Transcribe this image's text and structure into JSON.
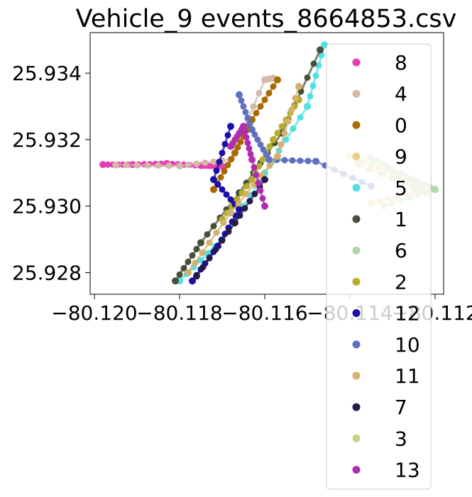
{
  "chart_data": {
    "type": "scatter",
    "title": "Vehicle_9 events_8664853.csv",
    "xlabel": "",
    "ylabel": "",
    "xlim": [
      -80.1201,
      -80.1118
    ],
    "ylim": [
      25.92735,
      25.93522
    ],
    "x_ticks": [
      -80.12,
      -80.118,
      -80.116,
      -80.114,
      -80.112
    ],
    "x_tick_labels": [
      "−80.120",
      "−80.118",
      "−80.116",
      "−80.114",
      "−80.112"
    ],
    "y_ticks": [
      25.928,
      25.93,
      25.932,
      25.934
    ],
    "y_tick_labels": [
      "25.928",
      "25.930",
      "25.932",
      "25.934"
    ],
    "grid": false,
    "legend_position": "right (overflowing axes)",
    "series": [
      {
        "name": "8",
        "color": "#e63fb0",
        "points": [
          [
            -80.1198,
            25.93125
          ],
          [
            -80.1191,
            25.93125
          ],
          [
            -80.1183,
            25.93128
          ],
          [
            -80.1175,
            25.93122
          ],
          [
            -80.117,
            25.9312
          ]
        ]
      },
      {
        "name": "4",
        "color": "#d4b8a8",
        "points": [
          [
            -80.1195,
            25.93124
          ],
          [
            -80.118,
            25.93121
          ],
          [
            -80.1168,
            25.9314
          ],
          [
            -80.116,
            25.9338
          ],
          [
            -80.1158,
            25.93385
          ]
        ]
      },
      {
        "name": "0",
        "color": "#a86a00",
        "points": [
          [
            -80.1157,
            25.9338
          ],
          [
            -80.1163,
            25.9326
          ],
          [
            -80.1167,
            25.9316
          ],
          [
            -80.1172,
            25.9305
          ]
        ]
      },
      {
        "name": "9",
        "color": "#e8d08a",
        "points": [
          [
            -80.114,
            25.9315
          ],
          [
            -80.113,
            25.931
          ],
          [
            -80.1123,
            25.9305
          ],
          [
            -80.1135,
            25.9301
          ]
        ]
      },
      {
        "name": "5",
        "color": "#4fe0e0",
        "points": [
          [
            -80.118,
            25.92775
          ],
          [
            -80.117,
            25.929
          ],
          [
            -80.116,
            25.931
          ],
          [
            -80.115,
            25.933
          ],
          [
            -80.1146,
            25.93485
          ]
        ]
      },
      {
        "name": "1",
        "color": "#465037",
        "points": [
          [
            -80.1181,
            25.92775
          ],
          [
            -80.1175,
            25.9289
          ],
          [
            -80.1166,
            25.9304
          ],
          [
            -80.1156,
            25.9322
          ],
          [
            -80.1147,
            25.9347
          ]
        ]
      },
      {
        "name": "6",
        "color": "#b0d8a8",
        "points": [
          [
            -80.1135,
            25.93145
          ],
          [
            -80.1127,
            25.9309
          ],
          [
            -80.112,
            25.9305
          ],
          [
            -80.1132,
            25.93
          ]
        ]
      },
      {
        "name": "2",
        "color": "#b6ae2a",
        "points": [
          [
            -80.117,
            25.9296
          ],
          [
            -80.1163,
            25.9308
          ],
          [
            -80.1158,
            25.932
          ],
          [
            -80.1152,
            25.9332
          ]
        ]
      },
      {
        "name": "12",
        "color": "#1a0fa6",
        "points": [
          [
            -80.1177,
            25.92775
          ],
          [
            -80.1171,
            25.9288
          ],
          [
            -80.1166,
            25.9299
          ],
          [
            -80.1172,
            25.9308
          ],
          [
            -80.1168,
            25.9324
          ]
        ]
      },
      {
        "name": "10",
        "color": "#6070c0",
        "points": [
          [
            -80.1166,
            25.93335
          ],
          [
            -80.1163,
            25.9323
          ],
          [
            -80.1159,
            25.9314
          ],
          [
            -80.1148,
            25.93135
          ],
          [
            -80.1135,
            25.9306
          ]
        ]
      },
      {
        "name": "11",
        "color": "#d6b070",
        "points": [
          [
            -80.1178,
            25.928
          ],
          [
            -80.1168,
            25.9298
          ],
          [
            -80.1157,
            25.9315
          ],
          [
            -80.1152,
            25.9336
          ]
        ]
      },
      {
        "name": "7",
        "color": "#2a1a4a",
        "points": [
          [
            -80.1176,
            25.9279
          ],
          [
            -80.1167,
            25.9295
          ],
          [
            -80.116,
            25.9308
          ]
        ]
      },
      {
        "name": "3",
        "color": "#cbcf88",
        "points": [
          [
            -80.1125,
            25.9306
          ],
          [
            -80.1122,
            25.9304
          ],
          [
            -80.1138,
            25.93125
          ]
        ]
      },
      {
        "name": "13",
        "color": "#b02cb0",
        "points": [
          [
            -80.1168,
            25.9318
          ],
          [
            -80.1165,
            25.9324
          ],
          [
            -80.1163,
            25.9314
          ],
          [
            -80.116,
            25.93
          ]
        ]
      }
    ]
  }
}
